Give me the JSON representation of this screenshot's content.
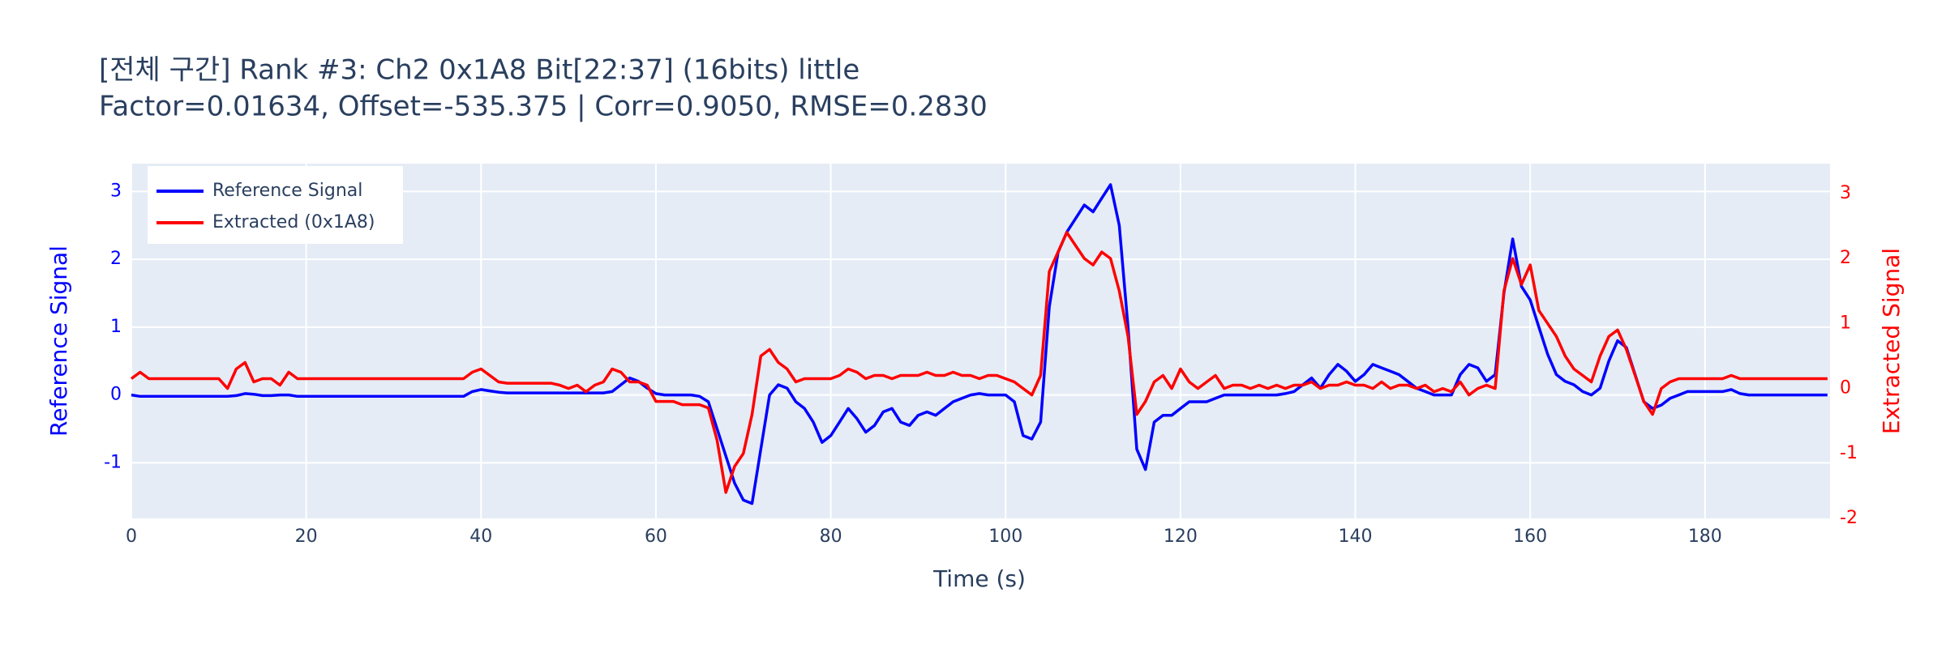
{
  "chart_data": {
    "type": "line",
    "title": "[전체 구간] Rank #3: Ch2 0x1A8 Bit[22:37] (16bits) little",
    "subtitle": "Factor=0.01634, Offset=-535.375 | Corr=0.9050, RMSE=0.2830",
    "xlabel": "Time (s)",
    "ylabel": "Reference Signal",
    "y2label": "Extracted Signal",
    "xlim": [
      0,
      194.3
    ],
    "xticks": [
      0,
      20,
      40,
      60,
      80,
      100,
      120,
      140,
      160,
      180
    ],
    "ylim": [
      -1.82,
      3.41
    ],
    "yticks": [
      -1,
      0,
      1,
      2,
      3
    ],
    "y2lim": [
      -2,
      3.46
    ],
    "y2ticks": [
      -2,
      -1,
      0,
      1,
      2,
      3
    ],
    "grid": true,
    "legend": "upper left",
    "x": [
      0,
      1,
      2,
      3,
      4,
      5,
      6,
      7,
      8,
      9,
      10,
      11,
      12,
      13,
      14,
      15,
      16,
      17,
      18,
      19,
      20,
      21,
      22,
      23,
      24,
      25,
      26,
      27,
      28,
      29,
      30,
      31,
      32,
      33,
      34,
      35,
      36,
      37,
      38,
      39,
      40,
      41,
      42,
      43,
      44,
      45,
      46,
      47,
      48,
      49,
      50,
      51,
      52,
      53,
      54,
      55,
      56,
      57,
      58,
      59,
      60,
      61,
      62,
      63,
      64,
      65,
      66,
      67,
      68,
      69,
      70,
      71,
      72,
      73,
      74,
      75,
      76,
      77,
      78,
      79,
      80,
      81,
      82,
      83,
      84,
      85,
      86,
      87,
      88,
      89,
      90,
      91,
      92,
      93,
      94,
      95,
      96,
      97,
      98,
      99,
      100,
      101,
      102,
      103,
      104,
      105,
      106,
      107,
      108,
      109,
      110,
      111,
      112,
      113,
      114,
      115,
      116,
      117,
      118,
      119,
      120,
      121,
      122,
      123,
      124,
      125,
      126,
      127,
      128,
      129,
      130,
      131,
      132,
      133,
      134,
      135,
      136,
      137,
      138,
      139,
      140,
      141,
      142,
      143,
      144,
      145,
      146,
      147,
      148,
      149,
      150,
      151,
      152,
      153,
      154,
      155,
      156,
      157,
      158,
      159,
      160,
      161,
      162,
      163,
      164,
      165,
      166,
      167,
      168,
      169,
      170,
      171,
      172,
      173,
      174,
      175,
      176,
      177,
      178,
      179,
      180,
      181,
      182,
      183,
      184,
      185,
      186,
      187,
      188,
      189,
      190,
      191,
      192,
      193,
      194
    ],
    "series": [
      {
        "name": "Reference Signal",
        "color": "#0000ff",
        "axis": "y",
        "values": [
          0,
          -0.02,
          -0.02,
          -0.02,
          -0.02,
          -0.02,
          -0.02,
          -0.02,
          -0.02,
          -0.02,
          -0.02,
          -0.02,
          -0.01,
          0.02,
          0.01,
          -0.01,
          -0.01,
          0,
          0,
          -0.02,
          -0.02,
          -0.02,
          -0.02,
          -0.02,
          -0.02,
          -0.02,
          -0.02,
          -0.02,
          -0.02,
          -0.02,
          -0.02,
          -0.02,
          -0.02,
          -0.02,
          -0.02,
          -0.02,
          -0.02,
          -0.02,
          -0.02,
          0.05,
          0.08,
          0.06,
          0.04,
          0.03,
          0.03,
          0.03,
          0.03,
          0.03,
          0.03,
          0.03,
          0.03,
          0.03,
          0.03,
          0.03,
          0.03,
          0.05,
          0.15,
          0.25,
          0.2,
          0.1,
          0.02,
          0,
          0,
          0,
          0,
          -0.02,
          -0.1,
          -0.5,
          -0.9,
          -1.3,
          -1.55,
          -1.6,
          -0.8,
          0,
          0.15,
          0.1,
          -0.1,
          -0.2,
          -0.4,
          -0.7,
          -0.6,
          -0.4,
          -0.2,
          -0.35,
          -0.55,
          -0.45,
          -0.25,
          -0.2,
          -0.4,
          -0.45,
          -0.3,
          -0.25,
          -0.3,
          -0.2,
          -0.1,
          -0.05,
          0,
          0.02,
          0,
          0,
          0,
          -0.1,
          -0.6,
          -0.65,
          -0.4,
          1.3,
          2.1,
          2.4,
          2.6,
          2.8,
          2.7,
          2.9,
          3.1,
          2.5,
          1,
          -0.8,
          -1.1,
          -0.4,
          -0.3,
          -0.3,
          -0.2,
          -0.1,
          -0.1,
          -0.1,
          -0.05,
          0,
          0,
          0,
          0,
          0,
          0,
          0,
          0.02,
          0.05,
          0.15,
          0.25,
          0.1,
          0.3,
          0.45,
          0.35,
          0.2,
          0.3,
          0.45,
          0.4,
          0.35,
          0.3,
          0.2,
          0.1,
          0.05,
          0,
          0,
          0,
          0.3,
          0.45,
          0.4,
          0.2,
          0.3,
          1.5,
          2.3,
          1.6,
          1.4,
          1,
          0.6,
          0.3,
          0.2,
          0.15,
          0.05,
          0,
          0.1,
          0.5,
          0.8,
          0.7,
          0.3,
          -0.1,
          -0.2,
          -0.15,
          -0.05,
          0,
          0.05,
          0.05,
          0.05,
          0.05,
          0.05,
          0.08,
          0.02,
          0,
          0,
          0,
          0,
          0,
          0,
          0,
          0,
          0,
          0
        ]
      },
      {
        "name": "Extracted (0x1A8)",
        "color": "#ff0000",
        "axis": "y2",
        "values": [
          0.15,
          0.25,
          0.15,
          0.15,
          0.15,
          0.15,
          0.15,
          0.15,
          0.15,
          0.15,
          0.15,
          0,
          0.3,
          0.4,
          0.1,
          0.15,
          0.15,
          0.05,
          0.25,
          0.15,
          0.15,
          0.15,
          0.15,
          0.15,
          0.15,
          0.15,
          0.15,
          0.15,
          0.15,
          0.15,
          0.15,
          0.15,
          0.15,
          0.15,
          0.15,
          0.15,
          0.15,
          0.15,
          0.15,
          0.25,
          0.3,
          0.2,
          0.1,
          0.08,
          0.08,
          0.08,
          0.08,
          0.08,
          0.08,
          0.05,
          0,
          0.05,
          -0.05,
          0.05,
          0.1,
          0.3,
          0.25,
          0.1,
          0.1,
          0.05,
          -0.2,
          -0.2,
          -0.2,
          -0.25,
          -0.25,
          -0.25,
          -0.3,
          -0.8,
          -1.6,
          -1.2,
          -1,
          -0.4,
          0.5,
          0.6,
          0.4,
          0.3,
          0.1,
          0.15,
          0.15,
          0.15,
          0.15,
          0.2,
          0.3,
          0.25,
          0.15,
          0.2,
          0.2,
          0.15,
          0.2,
          0.2,
          0.2,
          0.25,
          0.2,
          0.2,
          0.25,
          0.2,
          0.2,
          0.15,
          0.2,
          0.2,
          0.15,
          0.1,
          0,
          -0.1,
          0.2,
          1.8,
          2.1,
          2.4,
          2.2,
          2,
          1.9,
          2.1,
          2,
          1.5,
          0.8,
          -0.4,
          -0.2,
          0.1,
          0.2,
          0,
          0.3,
          0.1,
          0,
          0.1,
          0.2,
          0,
          0.05,
          0.05,
          0,
          0.05,
          0,
          0.05,
          0,
          0.05,
          0.05,
          0.1,
          0,
          0.05,
          0.05,
          0.1,
          0.05,
          0.05,
          0,
          0.1,
          0,
          0.05,
          0.05,
          0,
          0.05,
          -0.05,
          0,
          -0.05,
          0.1,
          -0.1,
          0,
          0.05,
          0,
          1.5,
          2,
          1.6,
          1.9,
          1.2,
          1,
          0.8,
          0.5,
          0.3,
          0.2,
          0.1,
          0.5,
          0.8,
          0.9,
          0.6,
          0.2,
          -0.2,
          -0.4,
          0,
          0.1,
          0.15,
          0.15,
          0.15,
          0.15,
          0.15,
          0.15,
          0.2,
          0.15,
          0.15,
          0.15,
          0.15,
          0.15,
          0.15,
          0.15,
          0.15,
          0.15,
          0.15,
          0.15
        ]
      }
    ]
  }
}
